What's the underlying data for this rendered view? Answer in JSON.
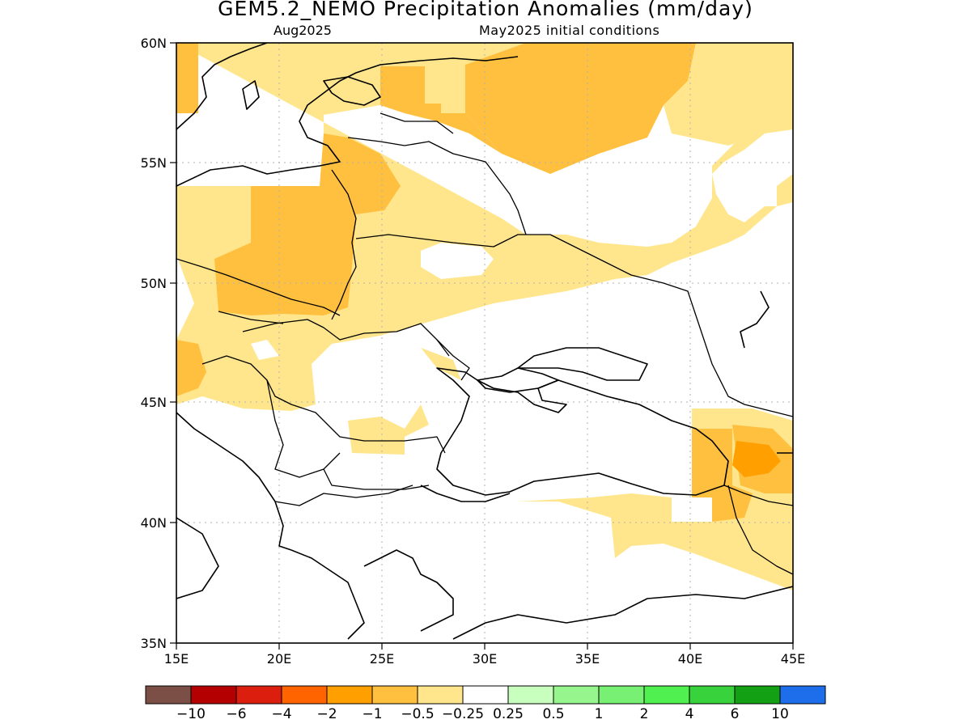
{
  "title": "GEM5.2_NEMO Precipitation Anomalies (mm/day)",
  "subtitle_left": "Aug2025",
  "subtitle_right": "May2025 initial conditions",
  "lon_labels": [
    "15E",
    "20E",
    "25E",
    "30E",
    "35E",
    "40E",
    "45E"
  ],
  "lat_labels": [
    "35N",
    "40N",
    "45N",
    "50N",
    "55N",
    "60N"
  ],
  "colorbar": {
    "colors": [
      "#7b4f45",
      "#b40000",
      "#dc1e0f",
      "#ff6400",
      "#ffa000",
      "#ffc040",
      "#ffe68c",
      "#ffffff",
      "#c8ffbe",
      "#96f58c",
      "#78f073",
      "#50f050",
      "#37d23c",
      "#14a014",
      "#1e6eeb"
    ],
    "labels": [
      "−10",
      "−6",
      "−4",
      "−2",
      "−1",
      "−0.5",
      "−0.25",
      "0.25",
      "0.5",
      "1",
      "2",
      "4",
      "6",
      "10"
    ]
  }
}
